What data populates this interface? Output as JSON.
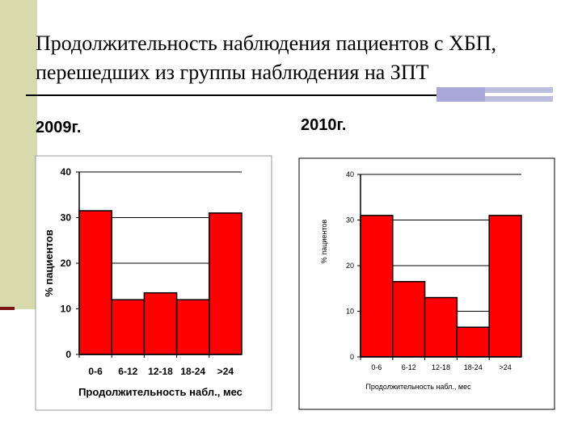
{
  "slide": {
    "title_line1": "Продолжительность наблюдения пациентов с ХБП,",
    "title_line2": "перешедших  из группы наблюдения на ЗПТ",
    "year_left": "2009г.",
    "year_right": "2010г."
  },
  "chart_data": [
    {
      "type": "bar",
      "categories": [
        "0-6",
        "6-12",
        "12-18",
        "18-24",
        ">24"
      ],
      "values": [
        31.5,
        12,
        13.5,
        12,
        31
      ],
      "xlabel": "Продолжительность набл., мес",
      "ylabel": "% пациентов",
      "ylim": [
        0,
        40
      ],
      "yticks": [
        "0",
        "10",
        "20",
        "30",
        "40"
      ],
      "grid": true,
      "bar_color": "#ff0000"
    },
    {
      "type": "bar",
      "categories": [
        "0-6",
        "6-12",
        "12-18",
        "18-24",
        ">24"
      ],
      "values": [
        31,
        16.5,
        13,
        6.5,
        31
      ],
      "xlabel": "Продолжительность набл., мес",
      "ylabel": "% пациентов",
      "ylim": [
        0,
        40
      ],
      "yticks": [
        "0",
        "10",
        "20",
        "30",
        "40"
      ],
      "grid": true,
      "bar_color": "#ff0000"
    }
  ]
}
